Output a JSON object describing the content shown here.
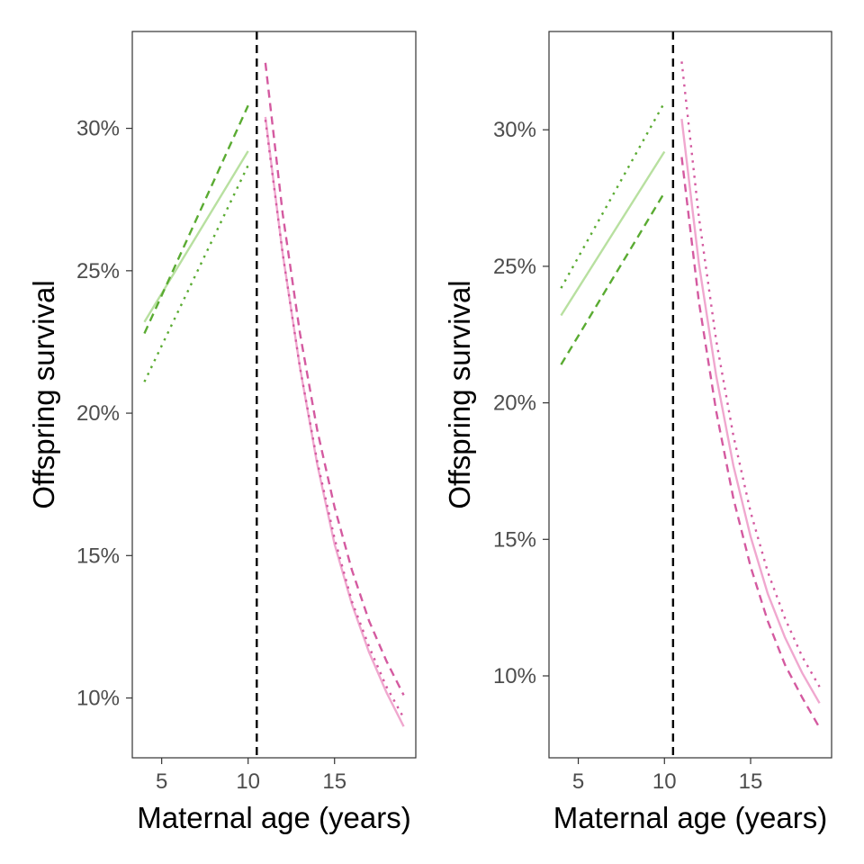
{
  "chart_data": [
    {
      "type": "line",
      "xlabel": "Maternal age (years)",
      "ylabel": "Offspring survival",
      "xlim": [
        3.3,
        19.7
      ],
      "ylim": [
        7.9,
        33.4
      ],
      "x_ticks": [
        5,
        10,
        15
      ],
      "x_tick_labels": [
        "5",
        "10",
        "15"
      ],
      "y_ticks": [
        10,
        15,
        20,
        25,
        30
      ],
      "y_tick_labels": [
        "10%",
        "15%",
        "20%",
        "25%",
        "30%"
      ],
      "vline": {
        "x": 10.5,
        "color": "#000000",
        "dash": "dashed"
      },
      "grid": false,
      "series": [
        {
          "x": [
            4,
            10
          ],
          "y": [
            23.2,
            29.2
          ],
          "color": "#b8e0a0",
          "dash": "solid"
        },
        {
          "x": [
            4,
            10
          ],
          "y": [
            22.8,
            30.8
          ],
          "color": "#5aab32",
          "dash": "dashed"
        },
        {
          "x": [
            4,
            10
          ],
          "y": [
            21.1,
            28.7
          ],
          "color": "#5aab32",
          "dash": "dotted"
        },
        {
          "x": [
            11,
            12,
            13,
            14,
            15,
            16,
            17,
            18,
            19
          ],
          "y": [
            30.4,
            25.6,
            21.6,
            18.2,
            15.4,
            13.3,
            11.6,
            10.2,
            9.0
          ],
          "color": "#f0a8cf",
          "dash": "solid"
        },
        {
          "x": [
            11,
            12,
            13,
            14,
            15,
            16,
            17,
            18,
            19
          ],
          "y": [
            32.3,
            27.0,
            22.8,
            19.4,
            16.7,
            14.5,
            12.7,
            11.3,
            10.1
          ],
          "color": "#d45aa0",
          "dash": "dashed"
        },
        {
          "x": [
            11,
            12,
            13,
            14,
            15,
            16,
            17,
            18,
            19
          ],
          "y": [
            30.3,
            25.6,
            21.6,
            18.3,
            15.6,
            13.4,
            11.8,
            10.4,
            9.3
          ],
          "color": "#d45aa0",
          "dash": "dotted"
        }
      ]
    },
    {
      "type": "line",
      "xlabel": "Maternal age (years)",
      "ylabel": "Offspring survival",
      "xlim": [
        3.3,
        19.7
      ],
      "ylim": [
        7.0,
        33.6
      ],
      "x_ticks": [
        5,
        10,
        15
      ],
      "x_tick_labels": [
        "5",
        "10",
        "15"
      ],
      "y_ticks": [
        10,
        15,
        20,
        25,
        30
      ],
      "y_tick_labels": [
        "10%",
        "15%",
        "20%",
        "25%",
        "30%"
      ],
      "vline": {
        "x": 10.5,
        "color": "#000000",
        "dash": "dashed"
      },
      "grid": false,
      "series": [
        {
          "x": [
            4,
            10
          ],
          "y": [
            23.2,
            29.2
          ],
          "color": "#b8e0a0",
          "dash": "solid"
        },
        {
          "x": [
            4,
            10
          ],
          "y": [
            21.4,
            27.7
          ],
          "color": "#5aab32",
          "dash": "dashed"
        },
        {
          "x": [
            4,
            10
          ],
          "y": [
            24.2,
            31.0
          ],
          "color": "#5aab32",
          "dash": "dotted"
        },
        {
          "x": [
            11,
            12,
            13,
            14,
            15,
            16,
            17,
            18,
            19
          ],
          "y": [
            30.4,
            25.1,
            21.0,
            17.7,
            15.1,
            13.0,
            11.4,
            10.1,
            9.0
          ],
          "color": "#f0a8cf",
          "dash": "solid"
        },
        {
          "x": [
            11,
            12,
            13,
            14,
            15,
            16,
            17,
            18,
            19
          ],
          "y": [
            29.0,
            23.7,
            19.7,
            16.5,
            14.0,
            12.0,
            10.4,
            9.2,
            8.1
          ],
          "color": "#d45aa0",
          "dash": "dashed"
        },
        {
          "x": [
            11,
            12,
            13,
            14,
            15,
            16,
            17,
            18,
            19
          ],
          "y": [
            32.5,
            26.8,
            22.3,
            18.8,
            16.0,
            13.8,
            12.1,
            10.7,
            9.6
          ],
          "color": "#d45aa0",
          "dash": "dotted"
        }
      ]
    }
  ]
}
